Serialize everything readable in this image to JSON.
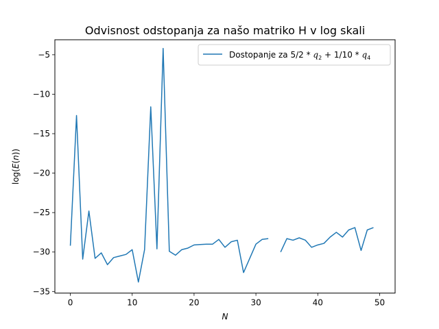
{
  "chart_data": {
    "type": "line",
    "title": "Odvisnost odstopanja za našo matriko H v log skali",
    "xlabel": "N",
    "ylabel": "log(E(n))",
    "xlim": [
      -2.5,
      52.5
    ],
    "ylim": [
      -35.2,
      -3.1
    ],
    "xticks": [
      0,
      10,
      20,
      30,
      40,
      50
    ],
    "yticks": [
      -35,
      -30,
      -25,
      -20,
      -15,
      -10,
      -5
    ],
    "grid": false,
    "legend_position": "top-right",
    "series": [
      {
        "name": "Dostopanje za 5/2 * q_2 + 1/10 * q_4",
        "color": "#1f77b4",
        "points": [
          [
            0,
            -29.2
          ],
          [
            1,
            -12.7
          ],
          [
            2,
            -30.9
          ],
          [
            3,
            -24.8
          ],
          [
            4,
            -30.8
          ],
          [
            5,
            -30.1
          ],
          [
            6,
            -31.6
          ],
          [
            7,
            -30.7
          ],
          [
            8,
            -30.5
          ],
          [
            9,
            -30.3
          ],
          [
            10,
            -29.7
          ],
          [
            11,
            -33.8
          ],
          [
            12,
            -29.7
          ],
          [
            13,
            -11.6
          ],
          [
            14,
            -29.6
          ],
          [
            15,
            -4.2
          ],
          [
            16,
            -29.9
          ],
          [
            17,
            -30.4
          ],
          [
            18,
            -29.7
          ],
          [
            19,
            -29.5
          ],
          [
            20,
            -29.1
          ],
          [
            21,
            -29.05
          ],
          [
            22,
            -29.0
          ],
          [
            23,
            -29.0
          ],
          [
            24,
            -28.4
          ],
          [
            25,
            -29.4
          ],
          [
            26,
            -28.7
          ],
          [
            27,
            -28.5
          ],
          [
            28,
            -32.6
          ],
          [
            29,
            -30.8
          ],
          [
            30,
            -29.0
          ],
          [
            31,
            -28.4
          ],
          [
            32,
            -28.3
          ],
          [
            33,
            null
          ],
          [
            34,
            -30.0
          ],
          [
            35,
            -28.3
          ],
          [
            36,
            -28.5
          ],
          [
            37,
            -28.2
          ],
          [
            38,
            -28.5
          ],
          [
            39,
            -29.4
          ],
          [
            40,
            -29.1
          ],
          [
            41,
            -28.9
          ],
          [
            42,
            -28.1
          ],
          [
            43,
            -27.5
          ],
          [
            44,
            -28.1
          ],
          [
            45,
            -27.2
          ],
          [
            46,
            -26.9
          ],
          [
            47,
            -29.8
          ],
          [
            48,
            -27.2
          ],
          [
            49,
            -26.9
          ]
        ]
      }
    ]
  },
  "legend": {
    "prefix": "Dostopanje za ",
    "formula": [
      "5/2",
      " * ",
      "q",
      "2",
      " + 1/10",
      " * ",
      "q",
      "4"
    ]
  },
  "axis_labels": {
    "x": "N",
    "y_prefix": "log(",
    "y_var": "E",
    "y_paren": "(",
    "y_n": "n",
    "y_suffix": "))"
  }
}
